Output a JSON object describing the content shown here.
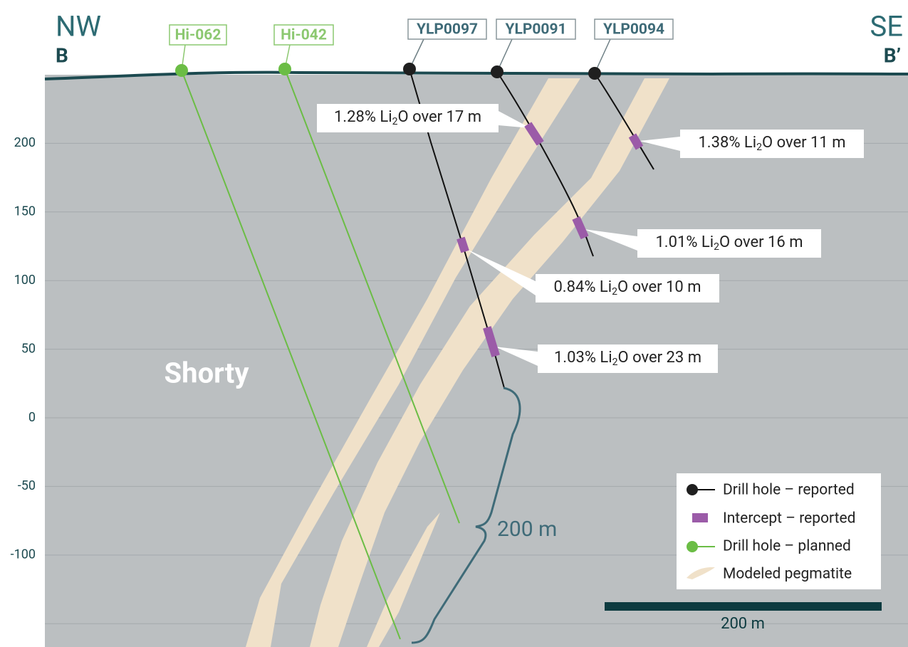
{
  "header": {
    "left": {
      "direction": "NW",
      "section": "B"
    },
    "right": {
      "direction": "SE",
      "section": "B’"
    }
  },
  "elevation_axis": {
    "ylim": [
      -167,
      250
    ],
    "yticks": [
      200,
      150,
      100,
      50,
      0,
      -50,
      -100,
      {
        "value": -150,
        "label": null
      }
    ]
  },
  "area_label": "Shorty",
  "drill_holes": [
    {
      "name": "Hi-062",
      "status": "planned"
    },
    {
      "name": "Hi-042",
      "status": "planned"
    },
    {
      "name": "YLP0097",
      "status": "reported"
    },
    {
      "name": "YLP0091",
      "status": "reported"
    },
    {
      "name": "YLP0094",
      "status": "reported"
    }
  ],
  "intercepts": [
    {
      "label": "1.28% Li2O over 17 m"
    },
    {
      "label": "1.38% Li2O over 11 m"
    },
    {
      "label": "1.01% Li2O over 16 m"
    },
    {
      "label": "0.84% Li2O over 10 m"
    },
    {
      "label": "1.03% Li2O over 23 m"
    }
  ],
  "depth_bracket": "200 m",
  "legend": [
    {
      "label": "Drill hole – reported"
    },
    {
      "label": "Intercept – reported"
    },
    {
      "label": "Drill hole – planned"
    },
    {
      "label": "Modeled pegmatite"
    }
  ],
  "scale_bar": "200 m"
}
